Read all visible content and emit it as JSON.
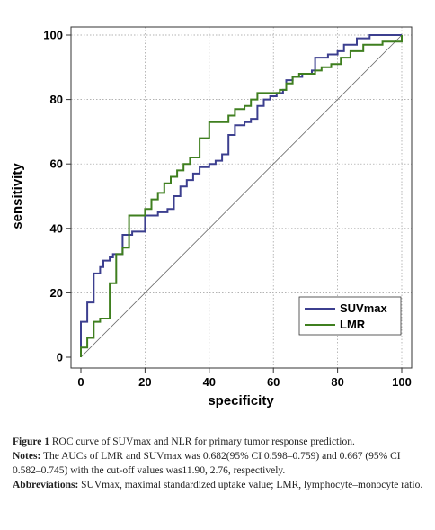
{
  "chart_data": {
    "type": "line",
    "xlabel": "specificity",
    "ylabel": "sensitivity",
    "xlim": [
      0,
      100
    ],
    "ylim": [
      0,
      100
    ],
    "xticks": [
      0,
      20,
      40,
      60,
      80,
      100
    ],
    "yticks": [
      0,
      20,
      40,
      60,
      80,
      100
    ],
    "grid": true,
    "legend_position": "bottom-right",
    "series": [
      {
        "name": "SUVmax",
        "color": "#3c3f8f",
        "points": [
          [
            0,
            0
          ],
          [
            0,
            11
          ],
          [
            2,
            11
          ],
          [
            2,
            17
          ],
          [
            4,
            17
          ],
          [
            4,
            26
          ],
          [
            6,
            26
          ],
          [
            6,
            28
          ],
          [
            7,
            28
          ],
          [
            7,
            30
          ],
          [
            9,
            30
          ],
          [
            9,
            31
          ],
          [
            10,
            31
          ],
          [
            10,
            32
          ],
          [
            13,
            32
          ],
          [
            13,
            38
          ],
          [
            16,
            38
          ],
          [
            16,
            39
          ],
          [
            20,
            39
          ],
          [
            20,
            44
          ],
          [
            24,
            44
          ],
          [
            24,
            45
          ],
          [
            27,
            45
          ],
          [
            27,
            46
          ],
          [
            29,
            46
          ],
          [
            29,
            50
          ],
          [
            31,
            50
          ],
          [
            31,
            53
          ],
          [
            33,
            53
          ],
          [
            33,
            55
          ],
          [
            35,
            55
          ],
          [
            35,
            57
          ],
          [
            37,
            57
          ],
          [
            37,
            59
          ],
          [
            40,
            59
          ],
          [
            40,
            60
          ],
          [
            42,
            60
          ],
          [
            42,
            61
          ],
          [
            44,
            61
          ],
          [
            44,
            63
          ],
          [
            46,
            63
          ],
          [
            46,
            69
          ],
          [
            48,
            69
          ],
          [
            48,
            72
          ],
          [
            51,
            72
          ],
          [
            51,
            73
          ],
          [
            53,
            73
          ],
          [
            53,
            74
          ],
          [
            55,
            74
          ],
          [
            55,
            78
          ],
          [
            57,
            78
          ],
          [
            57,
            80
          ],
          [
            59,
            80
          ],
          [
            59,
            81
          ],
          [
            61,
            81
          ],
          [
            61,
            82
          ],
          [
            63,
            82
          ],
          [
            63,
            83
          ],
          [
            64,
            83
          ],
          [
            64,
            86
          ],
          [
            66,
            86
          ],
          [
            66,
            87
          ],
          [
            69,
            87
          ],
          [
            69,
            88
          ],
          [
            72,
            88
          ],
          [
            72,
            89
          ],
          [
            73,
            89
          ],
          [
            73,
            93
          ],
          [
            77,
            93
          ],
          [
            77,
            94
          ],
          [
            80,
            94
          ],
          [
            80,
            95
          ],
          [
            82,
            95
          ],
          [
            82,
            97
          ],
          [
            86,
            97
          ],
          [
            86,
            99
          ],
          [
            90,
            99
          ],
          [
            90,
            100
          ],
          [
            100,
            100
          ]
        ]
      },
      {
        "name": "LMR",
        "color": "#3f7f1f",
        "points": [
          [
            0,
            0
          ],
          [
            0,
            3
          ],
          [
            2,
            3
          ],
          [
            2,
            6
          ],
          [
            4,
            6
          ],
          [
            4,
            11
          ],
          [
            6,
            11
          ],
          [
            6,
            12
          ],
          [
            9,
            12
          ],
          [
            9,
            23
          ],
          [
            11,
            23
          ],
          [
            11,
            32
          ],
          [
            13,
            32
          ],
          [
            13,
            34
          ],
          [
            15,
            34
          ],
          [
            15,
            44
          ],
          [
            20,
            44
          ],
          [
            20,
            46
          ],
          [
            22,
            46
          ],
          [
            22,
            49
          ],
          [
            24,
            49
          ],
          [
            24,
            51
          ],
          [
            26,
            51
          ],
          [
            26,
            54
          ],
          [
            28,
            54
          ],
          [
            28,
            56
          ],
          [
            30,
            56
          ],
          [
            30,
            58
          ],
          [
            32,
            58
          ],
          [
            32,
            60
          ],
          [
            34,
            60
          ],
          [
            34,
            62
          ],
          [
            37,
            62
          ],
          [
            37,
            68
          ],
          [
            40,
            68
          ],
          [
            40,
            73
          ],
          [
            46,
            73
          ],
          [
            46,
            75
          ],
          [
            48,
            75
          ],
          [
            48,
            77
          ],
          [
            51,
            77
          ],
          [
            51,
            78
          ],
          [
            53,
            78
          ],
          [
            53,
            80
          ],
          [
            55,
            80
          ],
          [
            55,
            82
          ],
          [
            62,
            82
          ],
          [
            62,
            83
          ],
          [
            64,
            83
          ],
          [
            64,
            85
          ],
          [
            66,
            85
          ],
          [
            66,
            87
          ],
          [
            68,
            87
          ],
          [
            68,
            88
          ],
          [
            73,
            88
          ],
          [
            73,
            89
          ],
          [
            75,
            89
          ],
          [
            75,
            90
          ],
          [
            78,
            90
          ],
          [
            78,
            91
          ],
          [
            81,
            91
          ],
          [
            81,
            93
          ],
          [
            84,
            93
          ],
          [
            84,
            95
          ],
          [
            88,
            95
          ],
          [
            88,
            97
          ],
          [
            94,
            97
          ],
          [
            94,
            98
          ],
          [
            100,
            98
          ],
          [
            100,
            100
          ]
        ]
      }
    ]
  },
  "caption": {
    "label": "Figure 1",
    "text": " ROC curve of SUVmax and NLR for primary tumor response prediction.",
    "notes_label": "Notes:",
    "notes_text": " The AUCs of LMR and SUVmax was 0.682(95% CI 0.598–0.759) and 0.667 (95% CI 0.582–0.745) with the cut-off values was11.90, 2.76, respectively.",
    "abbrev_label": "Abbreviations:",
    "abbrev_text": " SUVmax, maximal standardized uptake value; LMR, lymphocyte–monocyte ratio."
  }
}
